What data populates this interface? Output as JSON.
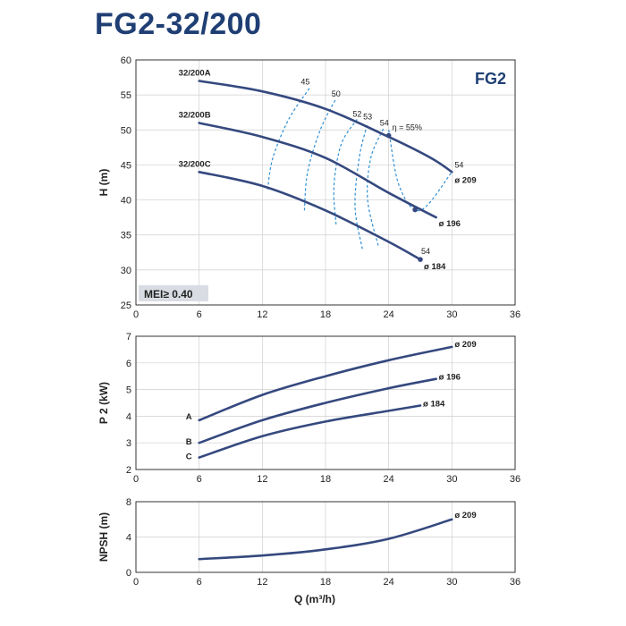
{
  "header": {
    "title": "FG2-32/200"
  },
  "colors": {
    "curve": "#35497f",
    "efficiency": "#2f8fd6",
    "title": "#1f3f74",
    "badge": "#d9dde3"
  },
  "chart_data": [
    {
      "id": "head",
      "type": "line",
      "ylabel": "H (m)",
      "xlim": [
        0,
        36
      ],
      "ylim": [
        25,
        60
      ],
      "xticks": [
        0,
        6,
        12,
        18,
        24,
        30,
        36
      ],
      "yticks": [
        25,
        30,
        35,
        40,
        45,
        50,
        55,
        60
      ],
      "grid": true,
      "family_label": "FG2",
      "badge": "MEI≥ 0.40",
      "series": [
        {
          "name": "32/200A",
          "end_label": "ø 209",
          "end_eff": "54",
          "x": [
            6,
            12,
            18,
            24,
            28,
            30
          ],
          "y": [
            57,
            55.5,
            53,
            49,
            46,
            44
          ]
        },
        {
          "name": "32/200B",
          "end_label": "ø 196",
          "x": [
            6,
            12,
            18,
            24,
            28.5
          ],
          "y": [
            51,
            49,
            46,
            41,
            37.5
          ]
        },
        {
          "name": "32/200C",
          "end_label": "ø 184",
          "end_eff": "54",
          "x": [
            6,
            12,
            18,
            24,
            27
          ],
          "y": [
            44,
            42,
            38.5,
            34,
            31.5
          ]
        }
      ],
      "efficiency": [
        {
          "label": "45",
          "x": [
            12.5,
            13,
            14.5,
            16.5
          ],
          "y": [
            41.5,
            46,
            51.5,
            56
          ]
        },
        {
          "label": "50",
          "x": [
            16,
            16.3,
            17.5,
            19
          ],
          "y": [
            38.5,
            44,
            50,
            54.5
          ]
        },
        {
          "label": "52",
          "x": [
            19,
            18.8,
            19.5,
            21
          ],
          "y": [
            36.5,
            42,
            48,
            51.5
          ]
        },
        {
          "label": "53",
          "x": [
            21.5,
            20.8,
            21.2,
            22
          ],
          "y": [
            33,
            39,
            46,
            51
          ]
        },
        {
          "label": "54",
          "x": [
            23,
            22,
            22.3,
            23.5
          ],
          "y": [
            33.5,
            40,
            46,
            50.2
          ]
        },
        {
          "label": "η = 55%",
          "x": [
            24,
            25,
            27,
            30
          ],
          "y": [
            50,
            42,
            38.5,
            44
          ]
        }
      ],
      "markers": [
        {
          "x": 24,
          "y": 49.2
        },
        {
          "x": 26.5,
          "y": 38.6
        },
        {
          "x": 27,
          "y": 31.5
        }
      ]
    },
    {
      "id": "power",
      "type": "line",
      "ylabel": "P 2 (kW)",
      "xlim": [
        0,
        36
      ],
      "ylim": [
        2,
        7
      ],
      "xticks": [
        0,
        6,
        12,
        18,
        24,
        30,
        36
      ],
      "yticks": [
        2,
        3,
        4,
        5,
        6,
        7
      ],
      "grid": true,
      "series": [
        {
          "name": "A",
          "end_label": "ø 209",
          "x": [
            6,
            12,
            18,
            24,
            30
          ],
          "y": [
            3.85,
            4.8,
            5.5,
            6.1,
            6.6
          ]
        },
        {
          "name": "B",
          "end_label": "ø 196",
          "x": [
            6,
            12,
            18,
            24,
            28.5
          ],
          "y": [
            3.0,
            3.85,
            4.5,
            5.05,
            5.4
          ]
        },
        {
          "name": "C",
          "end_label": "ø 184",
          "x": [
            6,
            12,
            18,
            24,
            27
          ],
          "y": [
            2.45,
            3.25,
            3.8,
            4.2,
            4.4
          ]
        }
      ]
    },
    {
      "id": "npsh",
      "type": "line",
      "ylabel": "NPSH (m)",
      "xlabel": "Q (m³/h)",
      "xlim": [
        0,
        36
      ],
      "ylim": [
        0,
        8
      ],
      "xticks": [
        0,
        6,
        12,
        18,
        24,
        30,
        36
      ],
      "yticks": [
        0,
        4,
        8
      ],
      "grid": true,
      "series": [
        {
          "name": "",
          "end_label": "ø 209",
          "x": [
            6,
            12,
            18,
            24,
            30
          ],
          "y": [
            1.5,
            1.9,
            2.6,
            3.8,
            6.0
          ]
        }
      ]
    }
  ]
}
